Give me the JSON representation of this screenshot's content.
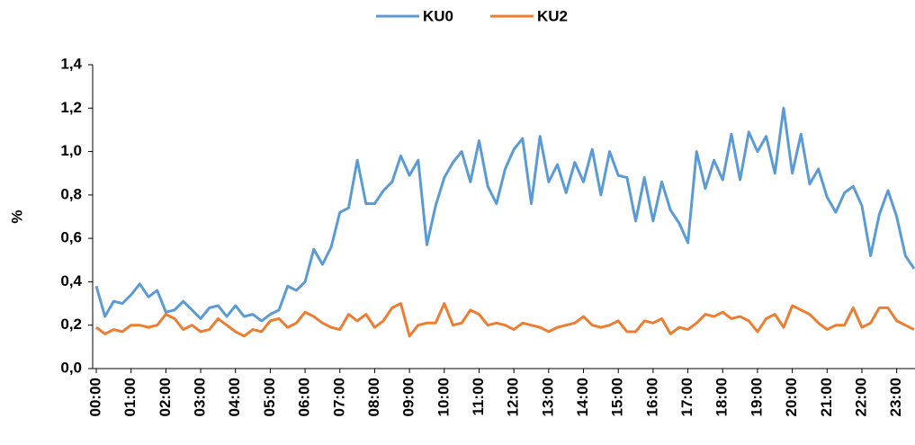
{
  "chart_data": {
    "type": "line",
    "ylabel": "%",
    "categories": [
      "00:00",
      null,
      null,
      null,
      "01:00",
      null,
      null,
      null,
      "02:00",
      null,
      null,
      null,
      "03:00",
      null,
      null,
      null,
      "04:00",
      null,
      null,
      null,
      "05:00",
      null,
      null,
      null,
      "06:00",
      null,
      null,
      null,
      "07:00",
      null,
      null,
      null,
      "08:00",
      null,
      null,
      null,
      "09:00",
      null,
      null,
      null,
      "10:00",
      null,
      null,
      null,
      "11:00",
      null,
      null,
      null,
      "12:00",
      null,
      null,
      null,
      "13:00",
      null,
      null,
      null,
      "14:00",
      null,
      null,
      null,
      "15:00",
      null,
      null,
      null,
      "16:00",
      null,
      null,
      null,
      "17:00",
      null,
      null,
      null,
      "18:00",
      null,
      null,
      null,
      "19:00",
      null,
      null,
      null,
      "20:00",
      null,
      null,
      null,
      "21:00",
      null,
      null,
      null,
      "22:00",
      null,
      null,
      null,
      "23:00",
      null,
      null
    ],
    "series": [
      {
        "name": "KU0",
        "color": "#5b9bd5",
        "values": [
          0.38,
          0.24,
          0.31,
          0.3,
          0.34,
          0.39,
          0.33,
          0.36,
          0.26,
          0.27,
          0.31,
          0.27,
          0.23,
          0.28,
          0.29,
          0.24,
          0.29,
          0.24,
          0.25,
          0.22,
          0.25,
          0.27,
          0.38,
          0.36,
          0.4,
          0.55,
          0.48,
          0.56,
          0.72,
          0.74,
          0.96,
          0.76,
          0.76,
          0.82,
          0.86,
          0.98,
          0.89,
          0.96,
          0.57,
          0.75,
          0.88,
          0.95,
          1.0,
          0.86,
          1.05,
          0.84,
          0.76,
          0.92,
          1.01,
          1.06,
          0.76,
          1.07,
          0.86,
          0.94,
          0.81,
          0.95,
          0.86,
          1.01,
          0.8,
          1.0,
          0.89,
          0.88,
          0.68,
          0.88,
          0.68,
          0.86,
          0.73,
          0.67,
          0.58,
          1.0,
          0.83,
          0.96,
          0.87,
          1.08,
          0.87,
          1.09,
          1.0,
          1.07,
          0.9,
          1.2,
          0.9,
          1.08,
          0.85,
          0.92,
          0.79,
          0.72,
          0.81,
          0.84,
          0.75,
          0.52,
          0.71,
          0.82,
          0.7,
          0.52,
          0.46
        ]
      },
      {
        "name": "KU2",
        "color": "#ed7d31",
        "values": [
          0.19,
          0.16,
          0.18,
          0.17,
          0.2,
          0.2,
          0.19,
          0.2,
          0.25,
          0.23,
          0.18,
          0.2,
          0.17,
          0.18,
          0.23,
          0.2,
          0.17,
          0.15,
          0.18,
          0.17,
          0.22,
          0.23,
          0.19,
          0.21,
          0.26,
          0.24,
          0.21,
          0.19,
          0.18,
          0.25,
          0.22,
          0.25,
          0.19,
          0.22,
          0.28,
          0.3,
          0.15,
          0.2,
          0.21,
          0.21,
          0.3,
          0.2,
          0.21,
          0.27,
          0.25,
          0.2,
          0.21,
          0.2,
          0.18,
          0.21,
          0.2,
          0.19,
          0.17,
          0.19,
          0.2,
          0.21,
          0.24,
          0.2,
          0.19,
          0.2,
          0.22,
          0.17,
          0.17,
          0.22,
          0.21,
          0.23,
          0.16,
          0.19,
          0.18,
          0.21,
          0.25,
          0.24,
          0.26,
          0.23,
          0.24,
          0.22,
          0.17,
          0.23,
          0.25,
          0.19,
          0.29,
          0.27,
          0.25,
          0.21,
          0.18,
          0.2,
          0.2,
          0.28,
          0.19,
          0.21,
          0.28,
          0.28,
          0.22,
          0.2,
          0.18
        ]
      }
    ],
    "ylim": [
      0,
      1.4
    ],
    "yticks": [
      {
        "value": 0,
        "label": "0,0"
      },
      {
        "value": 0.2,
        "label": "0,2"
      },
      {
        "value": 0.4,
        "label": "0,4"
      },
      {
        "value": 0.6,
        "label": "0,6"
      },
      {
        "value": 0.8,
        "label": "0,8"
      },
      {
        "value": 1.0,
        "label": "1,0"
      },
      {
        "value": 1.2,
        "label": "1,2"
      },
      {
        "value": 1.4,
        "label": "1,4"
      }
    ],
    "legend": "top",
    "grid": false
  }
}
